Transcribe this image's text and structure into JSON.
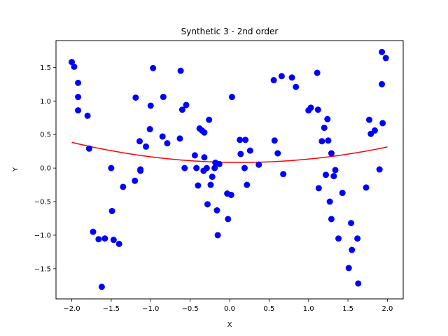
{
  "chart_data": {
    "type": "scatter",
    "title": "Synthetic 3 - 2nd order",
    "xlabel": "X",
    "ylabel": "Y",
    "xlim": [
      -2.2,
      2.2
    ],
    "ylim": [
      -1.95,
      1.9
    ],
    "xticks": [
      -2.0,
      -1.5,
      -1.0,
      -0.5,
      0.0,
      0.5,
      1.0,
      1.5,
      2.0
    ],
    "xtick_labels": [
      "−2.0",
      "−1.5",
      "−1.0",
      "−0.5",
      "0.0",
      "0.5",
      "1.0",
      "1.5",
      "2.0"
    ],
    "yticks": [
      -1.5,
      -1.0,
      -0.5,
      0.0,
      0.5,
      1.0,
      1.5
    ],
    "ytick_labels": [
      "−1.5",
      "−1.0",
      "−0.5",
      "0.0",
      "0.5",
      "1.0",
      "1.5"
    ],
    "grid": false,
    "series": [
      {
        "kind": "scatter",
        "color": "#0000ff",
        "points": [
          [
            -2.0,
            1.58
          ],
          [
            -1.97,
            1.51
          ],
          [
            -1.92,
            1.27
          ],
          [
            -1.92,
            1.06
          ],
          [
            -1.92,
            0.86
          ],
          [
            -1.8,
            0.78
          ],
          [
            -1.78,
            0.29
          ],
          [
            -1.73,
            -0.95
          ],
          [
            -1.66,
            -1.06
          ],
          [
            -1.62,
            -1.77
          ],
          [
            -1.58,
            -1.05
          ],
          [
            -1.5,
            0.0
          ],
          [
            -1.49,
            -0.64
          ],
          [
            -1.47,
            -1.07
          ],
          [
            -1.4,
            -1.13
          ],
          [
            -1.35,
            -0.28
          ],
          [
            -1.2,
            -0.19
          ],
          [
            -1.19,
            1.05
          ],
          [
            -1.14,
            0.4
          ],
          [
            -1.13,
            -0.02
          ],
          [
            -1.13,
            -0.04
          ],
          [
            -1.06,
            0.32
          ],
          [
            -1.01,
            0.58
          ],
          [
            -1.0,
            0.93
          ],
          [
            -0.97,
            1.49
          ],
          [
            -0.85,
            0.47
          ],
          [
            -0.84,
            1.06
          ],
          [
            -0.79,
            0.37
          ],
          [
            -0.63,
            0.44
          ],
          [
            -0.62,
            1.45
          ],
          [
            -0.6,
            0.87
          ],
          [
            -0.57,
            0.0
          ],
          [
            -0.55,
            0.94
          ],
          [
            -0.44,
            0.19
          ],
          [
            -0.42,
            0.0
          ],
          [
            -0.4,
            -0.26
          ],
          [
            -0.38,
            0.59
          ],
          [
            -0.35,
            0.56
          ],
          [
            -0.33,
            -0.04
          ],
          [
            -0.32,
            0.53
          ],
          [
            -0.32,
            0.16
          ],
          [
            -0.29,
            0.0
          ],
          [
            -0.28,
            -0.54
          ],
          [
            -0.26,
            0.72
          ],
          [
            -0.24,
            -0.25
          ],
          [
            -0.22,
            -0.13
          ],
          [
            -0.19,
            0.0
          ],
          [
            -0.18,
            0.08
          ],
          [
            -0.16,
            -0.63
          ],
          [
            -0.15,
            -1.0
          ],
          [
            -0.13,
            0.06
          ],
          [
            -0.03,
            -0.38
          ],
          [
            -0.02,
            -0.76
          ],
          [
            0.02,
            -0.4
          ],
          [
            0.03,
            1.06
          ],
          [
            0.13,
            0.42
          ],
          [
            0.14,
            0.21
          ],
          [
            0.19,
            0.0
          ],
          [
            0.2,
            0.42
          ],
          [
            0.22,
            -0.25
          ],
          [
            0.26,
            0.26
          ],
          [
            0.37,
            0.05
          ],
          [
            0.56,
            1.31
          ],
          [
            0.57,
            0.41
          ],
          [
            0.61,
            0.22
          ],
          [
            0.66,
            1.37
          ],
          [
            0.68,
            -0.09
          ],
          [
            0.79,
            1.35
          ],
          [
            0.84,
            1.21
          ],
          [
            1.0,
            0.86
          ],
          [
            1.03,
            0.9
          ],
          [
            1.11,
            1.42
          ],
          [
            1.12,
            0.87
          ],
          [
            1.13,
            -0.3
          ],
          [
            1.17,
            0.4
          ],
          [
            1.2,
            0.6
          ],
          [
            1.22,
            -0.1
          ],
          [
            1.24,
            0.73
          ],
          [
            1.25,
            0.41
          ],
          [
            1.27,
            -0.5
          ],
          [
            1.29,
            0.22
          ],
          [
            1.29,
            -0.76
          ],
          [
            1.32,
            -0.12
          ],
          [
            1.34,
            -0.03
          ],
          [
            1.38,
            -1.05
          ],
          [
            1.43,
            -0.37
          ],
          [
            1.51,
            -1.49
          ],
          [
            1.54,
            -0.82
          ],
          [
            1.55,
            -1.22
          ],
          [
            1.62,
            -1.05
          ],
          [
            1.63,
            -1.72
          ],
          [
            1.73,
            -0.29
          ],
          [
            1.77,
            0.72
          ],
          [
            1.79,
            0.51
          ],
          [
            1.84,
            0.56
          ],
          [
            1.9,
            -0.02
          ],
          [
            1.93,
            1.73
          ],
          [
            1.93,
            1.25
          ],
          [
            1.94,
            0.67
          ],
          [
            1.98,
            1.64
          ]
        ]
      },
      {
        "kind": "line",
        "color": "#ff0000",
        "fit": {
          "a": 0.066,
          "b": -0.017,
          "c": 0.085
        },
        "x_range": [
          -2.0,
          2.0
        ]
      }
    ]
  }
}
